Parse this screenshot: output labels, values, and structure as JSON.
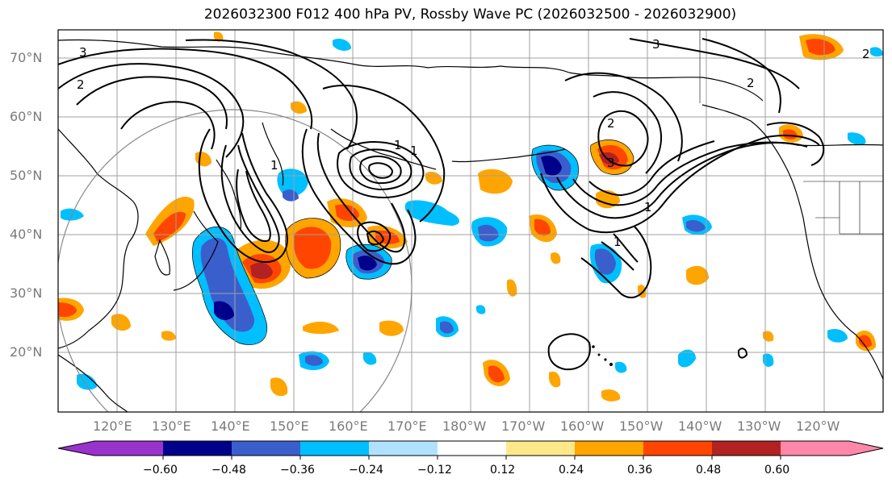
{
  "title": "2026032300 F012 400 hPa PV, Rossby Wave PC (2026032500 - 2026032900)",
  "map": {
    "lat_labels": [
      "70°N",
      "60°N",
      "50°N",
      "40°N",
      "30°N",
      "20°N"
    ],
    "lon_labels": [
      "120°E",
      "130°E",
      "140°E",
      "150°E",
      "160°E",
      "170°E",
      "180°W",
      "170°W",
      "160°W",
      "150°W",
      "140°W",
      "130°W",
      "120°W"
    ],
    "contour_labels": [
      "3",
      "2",
      "1",
      "1",
      "1",
      "1",
      "2",
      "3",
      "2",
      "3",
      "1",
      "2"
    ]
  },
  "colorbar": {
    "ticks": [
      "−0.60",
      "−0.48",
      "−0.36",
      "−0.24",
      "−0.12",
      "0.12",
      "0.24",
      "0.36",
      "0.48",
      "0.60"
    ],
    "colors": [
      "#9933cc",
      "#00008b",
      "#3a5fcd",
      "#00bfff",
      "#b0e2ff",
      "#ffffff",
      "#ffe88a",
      "#ffa500",
      "#ff4500",
      "#b22222",
      "#ff88aa"
    ]
  },
  "colors": {
    "grid": "#a0a0a0",
    "tick_label": "#7a7a7a"
  }
}
